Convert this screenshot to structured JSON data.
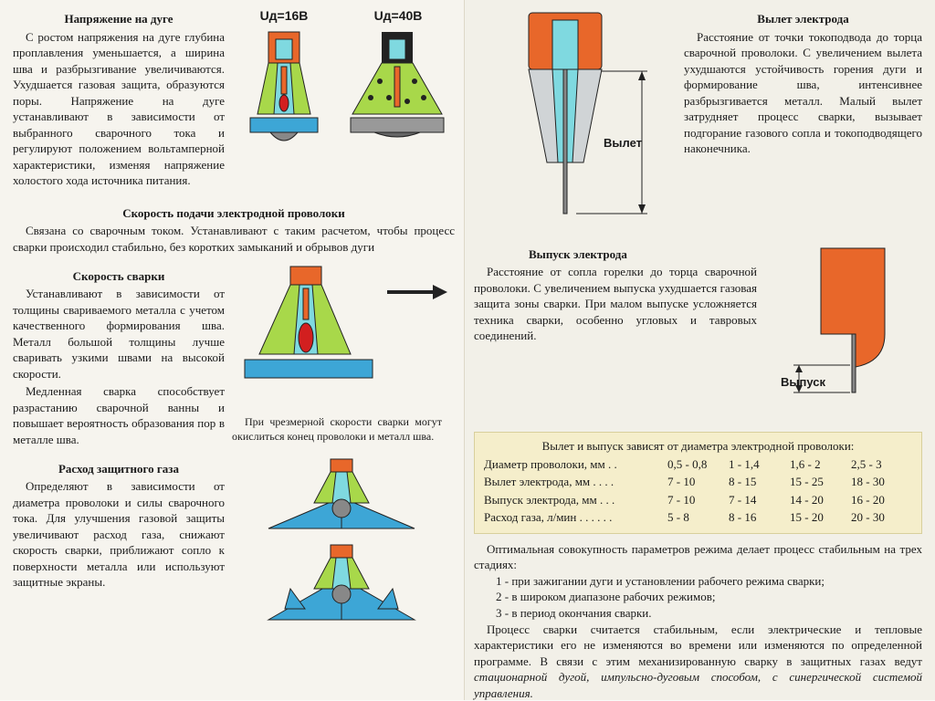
{
  "left": {
    "voltage": {
      "title": "Напряжение на дуге",
      "text": "С ростом напряжения на дуге глубина проплавления уменьшается, а ширина шва и разбрызгивание увеличиваются. Ухудшается газовая защита, образуются поры. Напряжение на дуге устанавливают в зависимости от выбранного сварочного тока и регулируют положением вольтамперной характеристики, изменяя напряжение холостого хода источника питания.",
      "u1": "Uд=16В",
      "u2": "Uд=40В"
    },
    "feed": {
      "title": "Скорость подачи электродной проволоки",
      "text": "Связана со сварочным током. Устанавливают с таким расчетом, чтобы процесс сварки происходил стабильно, без коротких замыканий и обрывов дуги"
    },
    "speed": {
      "title": "Скорость сварки",
      "text": "Устанавливают в зависимости от толщины свариваемого металла с учетом качественного формирования шва. Металл большой толщины лучше сваривать узкими швами на высокой скорости.",
      "text2": "Медленная сварка способствует разрастанию сварочной ванны и повышает вероятность образования пор в металле шва.",
      "caption": "При чрезмерной скорости сварки могут окислиться конец проволоки и металл шва."
    },
    "gas": {
      "title": "Расход защитного газа",
      "text": "Определяют в зависимости от диаметра проволоки и силы сварочного тока. Для улучшения газовой защиты увеличивают расход газа, снижают скорость сварки, приближают сопло к поверхности металла или используют защитные экраны."
    }
  },
  "right": {
    "stickout": {
      "title": "Вылет электрода",
      "text": "Расстояние от точки токоподвода до торца сварочной проволоки. С увеличением вылета ухудшаются устойчивость горения дуги и формирование шва, интенсивнее разбрызгивается металл. Малый вылет затрудняет процесс сварки, вызывает подгорание газового сопла и токоподводящего наконечника.",
      "label": "Вылет"
    },
    "ext": {
      "title": "Выпуск электрода",
      "text": "Расстояние от сопла горелки до торца сварочной проволоки. С увеличением выпуска ухудшается газовая защита зоны сварки. При малом выпуске усложняется техника сварки, особенно угловых и тавровых соединений.",
      "label": "Выпуск"
    },
    "table": {
      "title": "Вылет и выпуск зависят от диаметра электродной проволоки:",
      "rows": [
        {
          "name": "Диаметр проволоки, мм . .",
          "v": [
            "0,5 - 0,8",
            "1 - 1,4",
            "1,6 - 2",
            "2,5 - 3"
          ]
        },
        {
          "name": "Вылет электрода, мм . . . .",
          "v": [
            "7 - 10",
            "8 - 15",
            "15 - 25",
            "18 - 30"
          ]
        },
        {
          "name": "Выпуск электрода, мм . . .",
          "v": [
            "7 - 10",
            "7 - 14",
            "14 - 20",
            "16 - 20"
          ]
        },
        {
          "name": "Расход газа, л/мин . . . . . .",
          "v": [
            "5 - 8",
            "8 - 16",
            "15 - 20",
            "20 - 30"
          ]
        }
      ]
    },
    "footer": {
      "p1": "Оптимальная совокупность параметров режима делает процесс стабильным на трех стадиях:",
      "s1": "1 - при зажигании дуги и установлении рабочего режима сварки;",
      "s2": "2 - в широком диапазоне рабочих режимов;",
      "s3": "3 - в период окончания сварки.",
      "p2a": "Процесс сварки считается стабильным, если электрические и тепловые характеристики его не изменяются во времени или изменяются по определенной программе. В связи с этим механизированную сварку в защитных газах ведут ",
      "p2b": "стационарной дугой, импульсно-дуговым способом, с синергической системой управления."
    }
  },
  "colors": {
    "orange": "#e8672a",
    "cyan": "#7fd9e0",
    "green": "#a8d84a",
    "red": "#d21f1f",
    "blue": "#3da6d6",
    "gray": "#b8bdbf",
    "dark": "#222"
  }
}
